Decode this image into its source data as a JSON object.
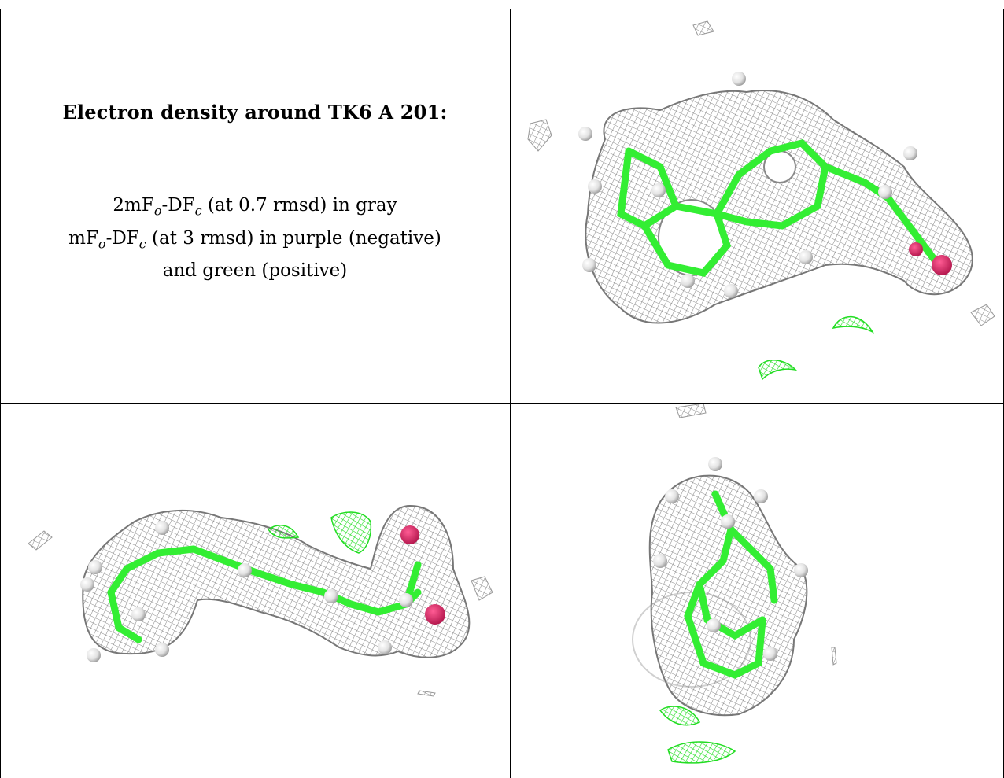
{
  "title": "Electron density around TK6 A 201:",
  "legend": {
    "line1": {
      "prefix": "2mF",
      "sub1": "o",
      "mid": "-DF",
      "sub2": "c",
      "suffix": " (at 0.7 rmsd) in gray"
    },
    "line2": {
      "prefix": "mF",
      "sub1": "o",
      "mid": "-DF",
      "sub2": "c",
      "suffix": " (at 3 rmsd) in purple (negative)"
    },
    "line3": "and green (positive)"
  },
  "colors": {
    "mesh_gray": "#8a8a8a",
    "positive_green": "#22dd22",
    "negative_purple": "#d0205a",
    "bond_green": "#33ee33",
    "hydrogen_white": "#e8e8e8",
    "border": "#000000"
  },
  "views": [
    "ligand-view-top",
    "ligand-view-side",
    "ligand-view-end"
  ]
}
